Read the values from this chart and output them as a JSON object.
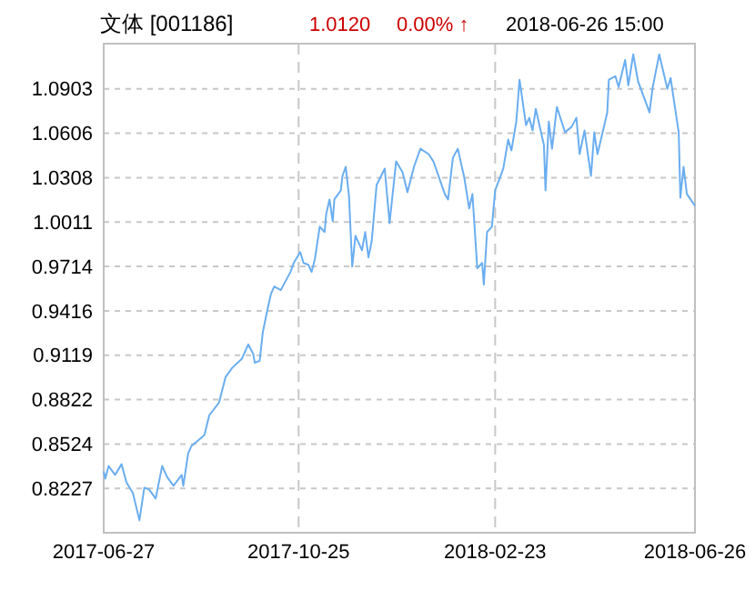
{
  "chart_data": {
    "type": "line",
    "title": "文体 [001186]",
    "annotations": [
      "1.0120",
      "0.00% ↑",
      "2018-06-26 15:00"
    ],
    "xlim": [
      "2017-06-27",
      "2018-06-26"
    ],
    "xticks": [
      "2017-06-27",
      "2017-10-25",
      "2018-02-23",
      "2018-06-26"
    ],
    "ylim": [
      0.793,
      1.1206
    ],
    "yticks": [
      0.8227,
      0.8524,
      0.8822,
      0.9119,
      0.9416,
      0.9714,
      1.0011,
      1.0308,
      1.0606,
      1.0903
    ],
    "grid": true,
    "marker": "none",
    "line_style": "solid",
    "series": [
      {
        "color": "#6aaef0",
        "x": [
          "2017-06-27",
          "2017-06-28",
          "2017-06-30",
          "2017-07-04",
          "2017-07-08",
          "2017-07-11",
          "2017-07-15",
          "2017-07-19",
          "2017-07-22",
          "2017-07-25",
          "2017-07-29",
          "2017-08-02",
          "2017-08-05",
          "2017-08-09",
          "2017-08-14",
          "2017-08-15",
          "2017-08-18",
          "2017-08-20",
          "2017-08-24",
          "2017-08-28",
          "2017-08-31",
          "2017-09-06",
          "2017-09-10",
          "2017-09-14",
          "2017-09-20",
          "2017-09-24",
          "2017-09-27",
          "2017-09-28",
          "2017-10-01",
          "2017-10-03",
          "2017-10-06",
          "2017-10-08",
          "2017-10-10",
          "2017-10-14",
          "2017-10-17",
          "2017-10-20",
          "2017-10-22",
          "2017-10-26",
          "2017-10-28",
          "2017-10-31",
          "2017-11-02",
          "2017-11-04",
          "2017-11-07",
          "2017-11-10",
          "2017-11-11",
          "2017-11-13",
          "2017-11-15",
          "2017-11-16",
          "2017-11-20",
          "2017-11-21",
          "2017-11-23",
          "2017-11-25",
          "2017-11-27",
          "2017-11-29",
          "2017-12-03",
          "2017-12-05",
          "2017-12-07",
          "2017-12-09",
          "2017-12-12",
          "2017-12-17",
          "2017-12-20",
          "2017-12-24",
          "2017-12-28",
          "2017-12-31",
          "2018-01-04",
          "2018-01-08",
          "2018-01-13",
          "2018-01-16",
          "2018-01-23",
          "2018-01-25",
          "2018-01-28",
          "2018-01-31",
          "2018-02-04",
          "2018-02-07",
          "2018-02-09",
          "2018-02-12",
          "2018-02-15",
          "2018-02-16",
          "2018-02-18",
          "2018-02-21",
          "2018-02-23",
          "2018-02-28",
          "2018-03-03",
          "2018-03-05",
          "2018-03-08",
          "2018-03-10",
          "2018-03-14",
          "2018-03-16",
          "2018-03-18",
          "2018-03-20",
          "2018-03-25",
          "2018-03-26",
          "2018-03-28",
          "2018-03-30",
          "2018-04-02",
          "2018-04-07",
          "2018-04-11",
          "2018-04-14",
          "2018-04-16",
          "2018-04-19",
          "2018-04-23",
          "2018-04-25",
          "2018-04-27",
          "2018-05-03",
          "2018-05-04",
          "2018-05-08",
          "2018-05-10",
          "2018-05-14",
          "2018-05-16",
          "2018-05-19",
          "2018-05-22",
          "2018-05-29",
          "2018-05-31",
          "2018-06-04",
          "2018-06-09",
          "2018-06-11",
          "2018-06-16",
          "2018-06-17",
          "2018-06-19",
          "2018-06-21",
          "2018-06-26"
        ],
        "values": [
          0.8341,
          0.8292,
          0.8377,
          0.8317,
          0.8389,
          0.8268,
          0.8195,
          0.8013,
          0.8232,
          0.8219,
          0.8159,
          0.8377,
          0.8304,
          0.8244,
          0.8317,
          0.8244,
          0.8462,
          0.8511,
          0.8547,
          0.8584,
          0.8717,
          0.8802,
          0.8972,
          0.9033,
          0.9094,
          0.9191,
          0.913,
          0.9069,
          0.9082,
          0.9276,
          0.9434,
          0.9531,
          0.9579,
          0.9555,
          0.9616,
          0.9677,
          0.9737,
          0.981,
          0.9737,
          0.9725,
          0.9677,
          0.9762,
          0.998,
          0.9944,
          1.0065,
          1.0162,
          1.0017,
          1.0162,
          1.0223,
          1.032,
          1.0381,
          1.0187,
          0.9713,
          0.9919,
          0.9822,
          0.9944,
          0.9774,
          0.9883,
          1.0259,
          1.0369,
          1.0004,
          1.0417,
          1.0344,
          1.0211,
          1.0381,
          1.0502,
          1.0466,
          1.0417,
          1.0199,
          1.0162,
          1.0442,
          1.0502,
          1.0308,
          1.0102,
          1.0199,
          0.9701,
          0.9737,
          0.9592,
          0.9944,
          0.998,
          1.0223,
          1.0369,
          1.0563,
          1.049,
          1.0684,
          1.0964,
          1.066,
          1.0709,
          1.0624,
          1.0769,
          1.0527,
          1.0223,
          1.0684,
          1.0502,
          1.0782,
          1.0612,
          1.0648,
          1.0709,
          1.0466,
          1.0624,
          1.032,
          1.0612,
          1.0466,
          1.0745,
          1.0964,
          1.0988,
          1.0915,
          1.1097,
          1.0927,
          1.1134,
          1.0952,
          1.0745,
          1.0915,
          1.1134,
          1.0903,
          1.0976,
          1.0612,
          1.0174,
          1.0381,
          1.0199,
          1.012
        ]
      }
    ]
  }
}
